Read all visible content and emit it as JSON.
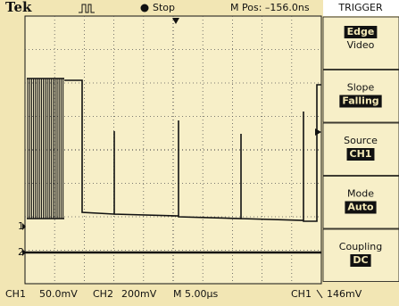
{
  "header": {
    "brand": "Tek",
    "status": "Stop",
    "position": "M Pos: –156.0ns",
    "menu_title": "TRIGGER"
  },
  "menu": [
    {
      "options": [
        "Edge",
        "Video"
      ]
    },
    {
      "label": "Slope",
      "option": "Falling"
    },
    {
      "label": "Source",
      "option": "CH1"
    },
    {
      "label": "Mode",
      "option": "Auto"
    },
    {
      "label": "Coupling",
      "option": "DC"
    }
  ],
  "markers": {
    "ch1": "1",
    "ch2": "2"
  },
  "footer": {
    "ch1_label": "CH1",
    "ch1_scale": "50.0mV",
    "ch2_label": "CH2",
    "ch2_scale": "200mV",
    "timebase": "M 5.00µs",
    "trigger_source": "CH1",
    "trigger_level": "146mV"
  }
}
